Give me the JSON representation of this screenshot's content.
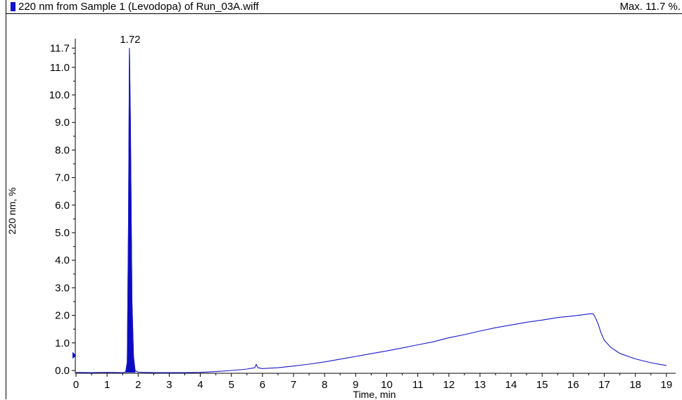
{
  "header": {
    "title": "220 nm from Sample 1 (Levodopa) of Run_03A.wiff",
    "max_label": "Max. 11.7 %."
  },
  "colors": {
    "trace": "#1a1acc",
    "peak_fill": "#0a0abf",
    "swatch": "#1010d0"
  },
  "chart_data": {
    "type": "line",
    "xlabel": "Time, min",
    "ylabel": "220 nm, %",
    "xlim": [
      0,
      19.2
    ],
    "ylim": [
      -0.1,
      11.7
    ],
    "x_ticks": [
      "0",
      "1",
      "2",
      "3",
      "4",
      "5",
      "6",
      "7",
      "8",
      "9",
      "10",
      "11",
      "12",
      "13",
      "14",
      "15",
      "16",
      "17",
      "18",
      "19"
    ],
    "y_ticks": [
      "0.0",
      "1.0",
      "2.0",
      "3.0",
      "4.0",
      "5.0",
      "6.0",
      "7.0",
      "8.0",
      "9.0",
      "10.0",
      "11.0",
      "11.7"
    ],
    "peak_label": "1.72",
    "series": [
      {
        "x": [
          0,
          0.5,
          1.0,
          1.5,
          1.6,
          1.65,
          1.69,
          1.72,
          1.75,
          1.8,
          1.85,
          1.9,
          2.0,
          2.5,
          3.0,
          3.5,
          4.0,
          4.5,
          5.0,
          5.5,
          5.75,
          5.8,
          5.85,
          6.0,
          6.5,
          7.0,
          7.5,
          8.0,
          8.5,
          9.0,
          9.5,
          10.0,
          10.5,
          11.0,
          11.5,
          12.0,
          12.5,
          13.0,
          13.5,
          14.0,
          14.5,
          15.0,
          15.5,
          16.0,
          16.3,
          16.5,
          16.6,
          16.65,
          16.7,
          16.8,
          16.9,
          17.0,
          17.2,
          17.5,
          18.0,
          18.5,
          19.0
        ],
        "values": [
          -0.07,
          -0.08,
          -0.07,
          -0.08,
          -0.05,
          0.3,
          5.5,
          11.7,
          9.0,
          2.5,
          0.5,
          0.0,
          -0.06,
          -0.08,
          -0.08,
          -0.08,
          -0.07,
          -0.04,
          0.0,
          0.05,
          0.1,
          0.22,
          0.1,
          0.07,
          0.1,
          0.16,
          0.23,
          0.31,
          0.41,
          0.51,
          0.61,
          0.71,
          0.82,
          0.93,
          1.04,
          1.19,
          1.3,
          1.43,
          1.55,
          1.65,
          1.75,
          1.83,
          1.92,
          1.98,
          2.02,
          2.05,
          2.06,
          2.04,
          1.95,
          1.7,
          1.35,
          1.1,
          0.85,
          0.62,
          0.42,
          0.28,
          0.18
        ]
      }
    ],
    "grid": false,
    "legend": "none"
  }
}
